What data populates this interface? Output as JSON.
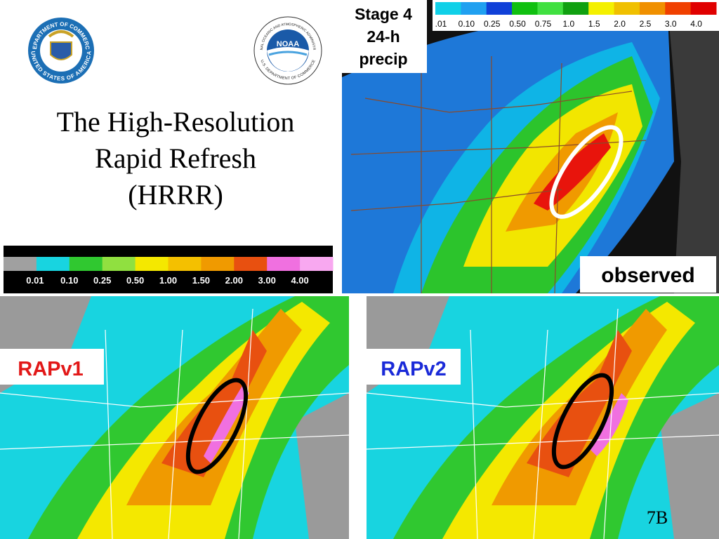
{
  "logos": {
    "commerce": {
      "ring_top": "DEPARTMENT OF COMMERCE",
      "ring_bottom": "UNITED STATES OF AMERICA"
    },
    "noaa": {
      "name": "NOAA",
      "ring_top": "NATIONAL OCEANIC AND ATMOSPHERIC ADMINISTRATION",
      "ring_bottom": "U.S. DEPARTMENT OF COMMERCE"
    }
  },
  "title": [
    "The High-Resolution",
    "Rapid Refresh",
    "(HRRR)"
  ],
  "model_legend": {
    "labels": [
      "0.01",
      "0.10",
      "0.25",
      "0.50",
      "1.00",
      "1.50",
      "2.00",
      "3.00",
      "4.00"
    ]
  },
  "observed_panel": {
    "heading": [
      "Stage 4",
      "24-h",
      "precip"
    ],
    "legend_labels": [
      ".01",
      "0.10",
      "0.25",
      "0.50",
      "0.75",
      "1.0",
      "1.5",
      "2.0",
      "2.5",
      "3.0",
      "4.0"
    ],
    "tag": "observed"
  },
  "panels": [
    {
      "tag": "RAPv1"
    },
    {
      "tag": "RAPv2"
    }
  ],
  "slide_number": "7B"
}
